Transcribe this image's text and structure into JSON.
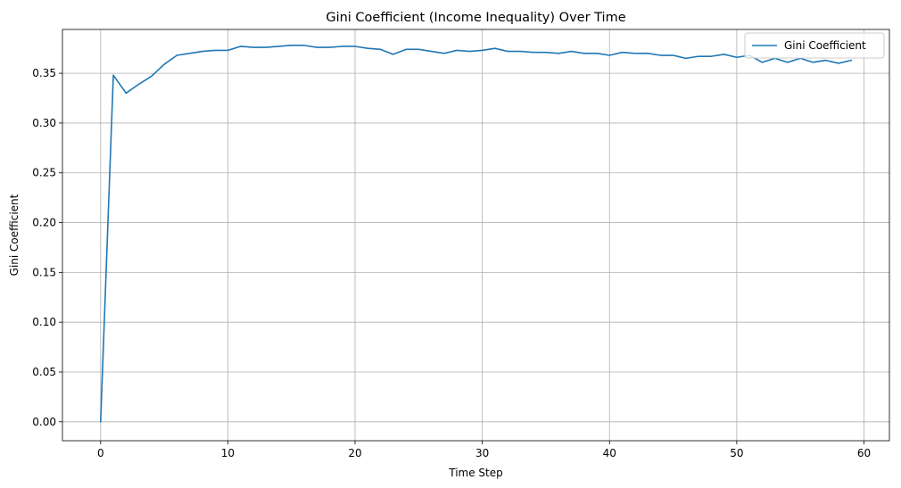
{
  "chart_data": {
    "type": "line",
    "title": "Gini Coefficient (Income Inequality) Over Time",
    "xlabel": "Time Step",
    "ylabel": "Gini Coefficient",
    "xlim": [
      -3,
      62
    ],
    "ylim": [
      -0.019,
      0.394
    ],
    "xticks": [
      0,
      10,
      20,
      30,
      40,
      50,
      60
    ],
    "yticks": [
      0.0,
      0.05,
      0.1,
      0.15,
      0.2,
      0.25,
      0.3,
      0.35
    ],
    "xtick_labels": [
      "0",
      "10",
      "20",
      "30",
      "40",
      "50",
      "60"
    ],
    "ytick_labels": [
      "0.00",
      "0.05",
      "0.10",
      "0.15",
      "0.20",
      "0.25",
      "0.30",
      "0.35"
    ],
    "grid": true,
    "legend_position": "top-right",
    "series": [
      {
        "name": "Gini Coefficient",
        "color": "#1f77b4",
        "x": [
          0,
          1,
          2,
          3,
          4,
          5,
          6,
          7,
          8,
          9,
          10,
          11,
          12,
          13,
          14,
          15,
          16,
          17,
          18,
          19,
          20,
          21,
          22,
          23,
          24,
          25,
          26,
          27,
          28,
          29,
          30,
          31,
          32,
          33,
          34,
          35,
          36,
          37,
          38,
          39,
          40,
          41,
          42,
          43,
          44,
          45,
          46,
          47,
          48,
          49,
          50,
          51,
          52,
          53,
          54,
          55,
          56,
          57,
          58,
          59
        ],
        "y": [
          0.0,
          0.348,
          0.33,
          0.339,
          0.347,
          0.359,
          0.368,
          0.37,
          0.372,
          0.373,
          0.373,
          0.377,
          0.376,
          0.376,
          0.377,
          0.378,
          0.378,
          0.376,
          0.376,
          0.377,
          0.377,
          0.375,
          0.374,
          0.369,
          0.374,
          0.374,
          0.372,
          0.37,
          0.373,
          0.372,
          0.373,
          0.375,
          0.372,
          0.372,
          0.371,
          0.371,
          0.37,
          0.372,
          0.37,
          0.37,
          0.368,
          0.371,
          0.37,
          0.37,
          0.368,
          0.368,
          0.365,
          0.367,
          0.367,
          0.369,
          0.366,
          0.368,
          0.361,
          0.365,
          0.361,
          0.365,
          0.361,
          0.363,
          0.36,
          0.363
        ]
      }
    ]
  }
}
